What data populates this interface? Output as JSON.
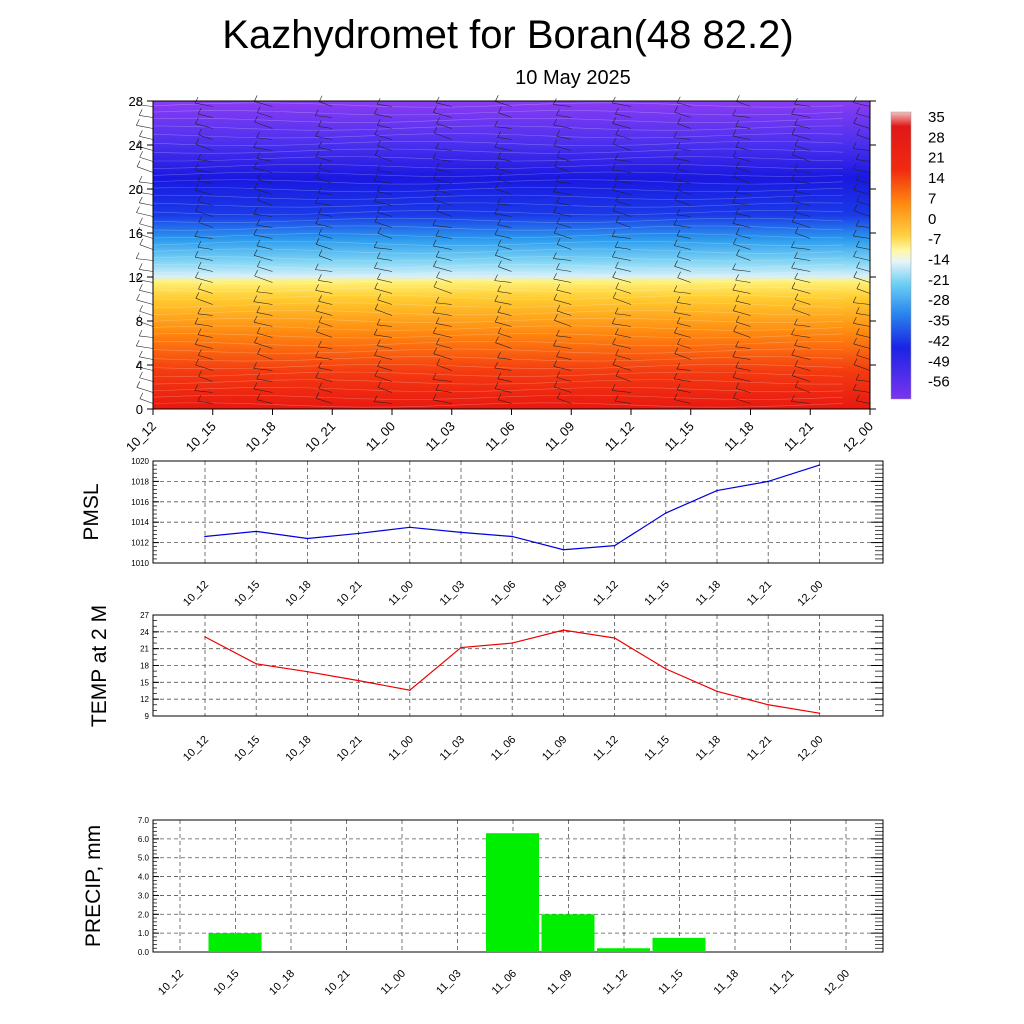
{
  "title": "Kazhydromet for Boran(48 82.2)",
  "subtitle": "10 May 2025",
  "time_labels": [
    "10_12",
    "10_15",
    "10_18",
    "10_21",
    "11_00",
    "11_03",
    "11_06",
    "11_09",
    "11_12",
    "11_15",
    "11_18",
    "11_21",
    "12_00"
  ],
  "chart_data": [
    {
      "type": "heatmap",
      "ylim": [
        0,
        28
      ],
      "yticks": [
        0,
        4,
        8,
        12,
        16,
        20,
        24,
        28
      ],
      "colorbar_labels": [
        "35",
        "28",
        "21",
        "14",
        "7",
        "0",
        "-7",
        "-14",
        "-21",
        "-28",
        "-35",
        "-42",
        "-49",
        "-56"
      ],
      "colors": {
        "low": "#7b2cf0",
        "mid_blue": "#1a22e6",
        "cyan": "#33b8f0",
        "yellow": "#fff27a",
        "orange": "#ff9a10",
        "red": "#f01a10"
      }
    },
    {
      "type": "line",
      "ylabel": "PMSL",
      "ylim": [
        1010,
        1020
      ],
      "yticks": [
        "1010",
        "1012",
        "1014",
        "1016",
        "1018",
        "1020"
      ],
      "color": "#0000dd",
      "values": [
        1012.6,
        1013.1,
        1012.4,
        1012.9,
        1013.5,
        1013.0,
        1012.6,
        1011.3,
        1011.7,
        1014.9,
        1017.1,
        1018.0,
        1019.6
      ]
    },
    {
      "type": "line",
      "ylabel": "TEMP at 2 M",
      "ylim": [
        9,
        27
      ],
      "yticks": [
        "9",
        "12",
        "15",
        "18",
        "21",
        "24",
        "27"
      ],
      "color": "#ee0000",
      "values": [
        23.1,
        18.3,
        16.9,
        15.3,
        13.6,
        21.2,
        22.0,
        24.3,
        22.9,
        17.4,
        13.4,
        11.0,
        9.5
      ]
    },
    {
      "type": "bar",
      "ylabel": "PRECIP, mm",
      "ylim": [
        0,
        7
      ],
      "yticks": [
        "0.0",
        "1.0",
        "2.0",
        "3.0",
        "4.0",
        "5.0",
        "6.0",
        "7.0"
      ],
      "color": "#00ee00",
      "values": [
        0,
        1.0,
        0,
        0,
        0,
        0,
        6.3,
        2.0,
        0.2,
        0.75,
        0,
        0,
        0
      ]
    }
  ]
}
